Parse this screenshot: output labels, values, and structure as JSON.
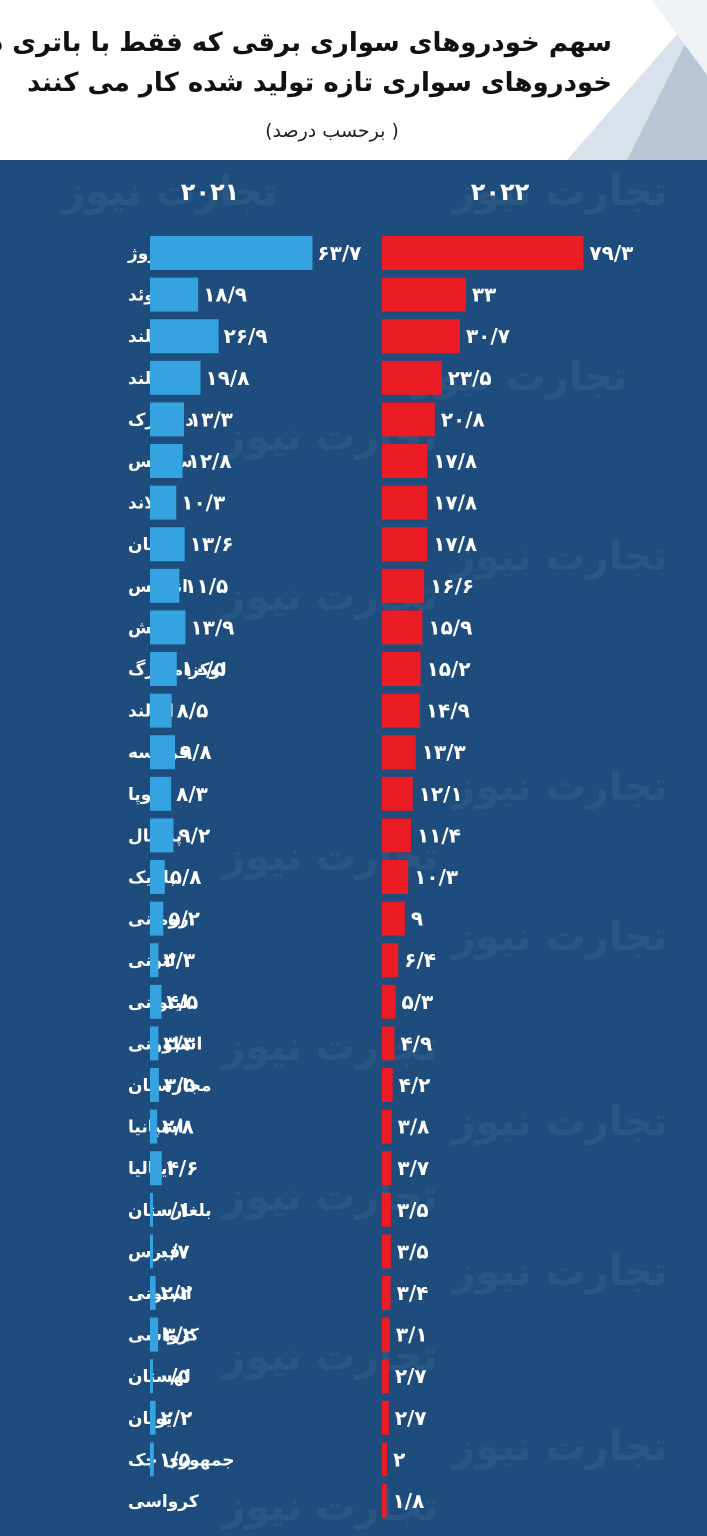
{
  "header": {
    "title_line1": "سهم خودروهای سواری برقی که فقط با باتری در بین",
    "title_line2": "خودروهای سواری تازه تولید شده کار می کنند",
    "subtitle": "( برحسب درصد)"
  },
  "watermark": "تجارت نیوز",
  "colors": {
    "background": "#1d4c7d",
    "bar_2021": "#35a3e0",
    "bar_2022": "#ec1c24"
  },
  "chart_data": {
    "type": "bar",
    "orientation": "horizontal",
    "categories": [
      "نروژ",
      "سوئد",
      "ایسلند",
      "هلند",
      "دانمارک",
      "سوئیس",
      "فنلاند",
      "آلمان",
      "انگلیس",
      "اتریش",
      "لوکزامبورگ",
      "ایرلند",
      "فرانسه",
      "اروپا",
      "پرتغال",
      "بلژیک",
      "رومانی",
      "لتونی",
      "لیتوانی",
      "اسلوونی",
      "مجارستان",
      "اسپانیا",
      "ایتالیا",
      "بلغارستان",
      "قبرس",
      "استونی",
      "کرواسی",
      "لهستان",
      "یونان",
      "جمهوری چک",
      "کرواسی"
    ],
    "series": [
      {
        "name": "۲۰۲۱",
        "values": [
          63.7,
          18.9,
          26.9,
          19.8,
          13.3,
          12.8,
          10.3,
          13.6,
          11.5,
          13.9,
          10.5,
          8.5,
          9.8,
          8.3,
          9.2,
          5.8,
          5.2,
          3.3,
          4.5,
          3.3,
          3.5,
          2.8,
          4.6,
          0.1,
          0.7,
          2.2,
          3.2,
          0.5,
          2.2,
          1.5,
          null
        ],
        "labels": [
          "۶۳/۷",
          "۱۸/۹",
          "۲۶/۹",
          "۱۹/۸",
          "۱۳/۳",
          "۱۲/۸",
          "۱۰/۳",
          "۱۳/۶",
          "۱۱/۵",
          "۱۳/۹",
          "۱۰/۵",
          "۸/۵",
          "۹/۸",
          "۸/۳",
          "۹/۲",
          "۵/۸",
          "۵/۲",
          "۳/۳",
          "۴/۵",
          "۳/۳",
          "۳/۵",
          "۲/۸",
          "۴/۶",
          "۰/۱",
          "۰/۷",
          "۲/۲",
          "۳/۲",
          "۰/۵",
          "۲/۲",
          "۱/۵",
          ""
        ]
      },
      {
        "name": "۲۰۲۲",
        "values": [
          79.3,
          33,
          30.7,
          23.5,
          20.8,
          17.8,
          17.8,
          17.8,
          16.6,
          15.9,
          15.2,
          14.9,
          13.3,
          12.1,
          11.4,
          10.3,
          9,
          6.4,
          5.3,
          4.9,
          4.2,
          3.8,
          3.7,
          3.5,
          3.5,
          3.4,
          3.1,
          2.7,
          2.7,
          2,
          1.8
        ],
        "labels": [
          "۷۹/۳",
          "۳۳",
          "۳۰/۷",
          "۲۳/۵",
          "۲۰/۸",
          "۱۷/۸",
          "۱۷/۸",
          "۱۷/۸",
          "۱۶/۶",
          "۱۵/۹",
          "۱۵/۲",
          "۱۴/۹",
          "۱۳/۳",
          "۱۲/۱",
          "۱۱/۴",
          "۱۰/۳",
          "۹",
          "۶/۴",
          "۵/۳",
          "۴/۹",
          "۴/۲",
          "۳/۸",
          "۳/۷",
          "۳/۵",
          "۳/۵",
          "۳/۴",
          "۳/۱",
          "۲/۷",
          "۲/۷",
          "۲",
          "۱/۸"
        ]
      }
    ]
  }
}
